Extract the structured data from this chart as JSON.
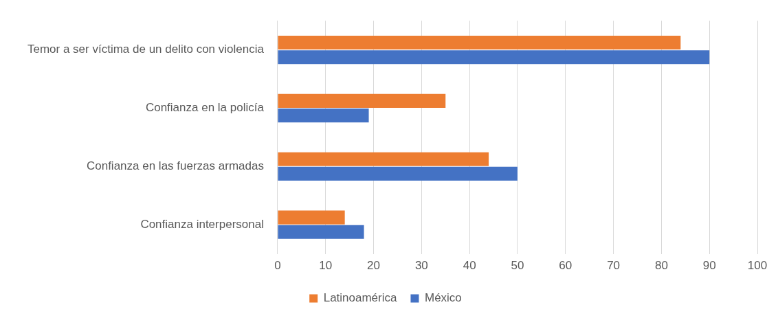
{
  "chart_data": {
    "type": "bar",
    "orientation": "horizontal",
    "categories": [
      "Temor a ser víctima de un delito con violencia",
      "Confianza en la policía",
      "Confianza en las fuerzas armadas",
      "Confianza interpersonal"
    ],
    "series": [
      {
        "name": "Latinoamérica",
        "color": "#ed7d31",
        "values": [
          84,
          35,
          44,
          14
        ]
      },
      {
        "name": "México",
        "color": "#4472c4",
        "values": [
          90,
          19,
          50,
          18
        ]
      }
    ],
    "xlim": [
      0,
      100
    ],
    "xticks": [
      0,
      10,
      20,
      30,
      40,
      50,
      60,
      70,
      80,
      90,
      100
    ],
    "grid": "x",
    "legend": "bottom"
  }
}
